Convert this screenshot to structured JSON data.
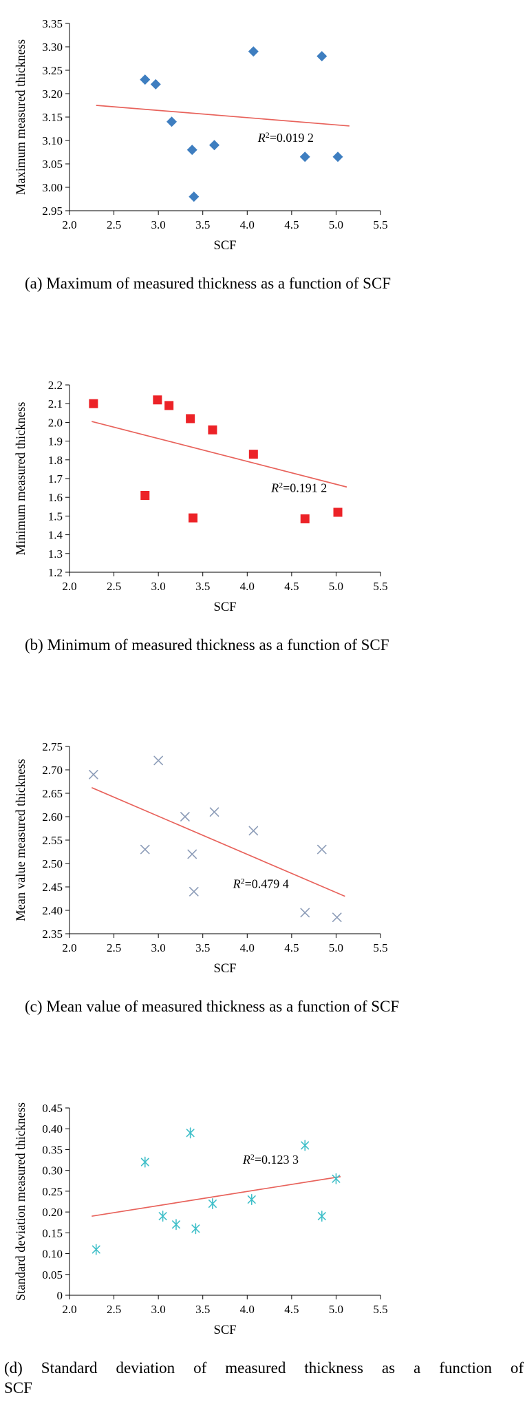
{
  "figure": {
    "panel_count": 4,
    "axis_color": "#000000"
  },
  "chart_data": [
    {
      "id": "a",
      "type": "scatter",
      "xlabel": "SCF",
      "ylabel": "Maximum measured thickness",
      "xlim": [
        2.0,
        5.5
      ],
      "ylim": [
        2.95,
        3.35
      ],
      "xticks": [
        "2.0",
        "2.5",
        "3.0",
        "3.5",
        "4.0",
        "4.5",
        "5.0",
        "5.5"
      ],
      "yticks": [
        "2.95",
        "3.00",
        "3.05",
        "3.10",
        "3.15",
        "3.20",
        "3.25",
        "3.30",
        "3.35"
      ],
      "grid": false,
      "marker": "diamond",
      "marker_color": "#3E7EC0",
      "trend_color": "#E8635C",
      "points": [
        [
          2.85,
          3.23
        ],
        [
          2.97,
          3.22
        ],
        [
          3.15,
          3.14
        ],
        [
          3.38,
          3.08
        ],
        [
          3.4,
          2.98
        ],
        [
          3.63,
          3.09
        ],
        [
          4.07,
          3.29
        ],
        [
          4.65,
          3.065
        ],
        [
          4.84,
          3.28
        ],
        [
          5.02,
          3.065
        ]
      ],
      "trend": {
        "x1": 2.3,
        "y1": 3.175,
        "x2": 5.15,
        "y2": 3.131
      },
      "r2_label": "R²=0.019 2",
      "r2_pos": {
        "x": 4.12,
        "y": 3.097
      },
      "caption": "(a) Maximum of measured thickness as a function of SCF"
    },
    {
      "id": "b",
      "type": "scatter",
      "xlabel": "SCF",
      "ylabel": "Minimum measured thickness",
      "xlim": [
        2.0,
        5.5
      ],
      "ylim": [
        1.2,
        2.2
      ],
      "xticks": [
        "2.0",
        "2.5",
        "3.0",
        "3.5",
        "4.0",
        "4.5",
        "5.0",
        "5.5"
      ],
      "yticks": [
        "1.2",
        "1.3",
        "1.4",
        "1.5",
        "1.6",
        "1.7",
        "1.8",
        "1.9",
        "2.0",
        "2.1",
        "2.2"
      ],
      "grid": false,
      "marker": "square",
      "marker_color": "#EC2227",
      "trend_color": "#E8635C",
      "points": [
        [
          2.27,
          2.1
        ],
        [
          2.85,
          1.61
        ],
        [
          2.99,
          2.12
        ],
        [
          3.12,
          2.09
        ],
        [
          3.36,
          2.02
        ],
        [
          3.39,
          1.49
        ],
        [
          3.61,
          1.96
        ],
        [
          4.07,
          1.83
        ],
        [
          4.65,
          1.485
        ],
        [
          5.02,
          1.52
        ]
      ],
      "trend": {
        "x1": 2.25,
        "y1": 2.005,
        "x2": 5.12,
        "y2": 1.655
      },
      "r2_label": "R²=0.191 2",
      "r2_pos": {
        "x": 4.27,
        "y": 1.628
      },
      "caption": "(b) Minimum of measured thickness as a function of SCF"
    },
    {
      "id": "c",
      "type": "scatter",
      "xlabel": "SCF",
      "ylabel": "Mean value measured thickness",
      "xlim": [
        2.0,
        5.5
      ],
      "ylim": [
        2.35,
        2.75
      ],
      "xticks": [
        "2.0",
        "2.5",
        "3.0",
        "3.5",
        "4.0",
        "4.5",
        "5.0",
        "5.5"
      ],
      "yticks": [
        "2.35",
        "2.40",
        "2.45",
        "2.50",
        "2.55",
        "2.60",
        "2.65",
        "2.70",
        "2.75"
      ],
      "grid": false,
      "marker": "cross",
      "marker_color": "#8C9CB8",
      "trend_color": "#E8635C",
      "points": [
        [
          2.27,
          2.69
        ],
        [
          2.85,
          2.53
        ],
        [
          3.0,
          2.72
        ],
        [
          3.3,
          2.6
        ],
        [
          3.38,
          2.52
        ],
        [
          3.4,
          2.44
        ],
        [
          3.63,
          2.61
        ],
        [
          4.07,
          2.57
        ],
        [
          4.65,
          2.395
        ],
        [
          4.84,
          2.53
        ],
        [
          5.01,
          2.385
        ]
      ],
      "trend": {
        "x1": 2.25,
        "y1": 2.662,
        "x2": 5.1,
        "y2": 2.43
      },
      "r2_label": "R²=0.479 4",
      "r2_pos": {
        "x": 3.84,
        "y": 2.448
      },
      "caption": "(c) Mean value of measured thickness as a function of SCF"
    },
    {
      "id": "d",
      "type": "scatter",
      "xlabel": "SCF",
      "ylabel": "Standard deviation measured thickness",
      "xlim": [
        2.0,
        5.5
      ],
      "ylim": [
        0,
        0.45
      ],
      "xticks": [
        "2.0",
        "2.5",
        "3.0",
        "3.5",
        "4.0",
        "4.5",
        "5.0",
        "5.5"
      ],
      "yticks": [
        "0",
        "0.05",
        "0.10",
        "0.15",
        "0.20",
        "0.25",
        "0.30",
        "0.35",
        "0.40",
        "0.45"
      ],
      "grid": false,
      "marker": "asterisk",
      "marker_color": "#3FBFC9",
      "trend_color": "#E8635C",
      "points": [
        [
          2.3,
          0.11
        ],
        [
          2.85,
          0.32
        ],
        [
          3.05,
          0.19
        ],
        [
          3.2,
          0.17
        ],
        [
          3.36,
          0.39
        ],
        [
          3.42,
          0.16
        ],
        [
          3.61,
          0.22
        ],
        [
          4.05,
          0.23
        ],
        [
          4.65,
          0.36
        ],
        [
          4.84,
          0.19
        ],
        [
          5.0,
          0.28
        ]
      ],
      "trend": {
        "x1": 2.25,
        "y1": 0.19,
        "x2": 5.05,
        "y2": 0.285
      },
      "r2_label": "R²=0.123 3",
      "r2_pos": {
        "x": 3.95,
        "y": 0.316
      },
      "caption_lines": [
        "(d) Standard deviation of measured thickness as a function of",
        "SCF"
      ]
    }
  ]
}
